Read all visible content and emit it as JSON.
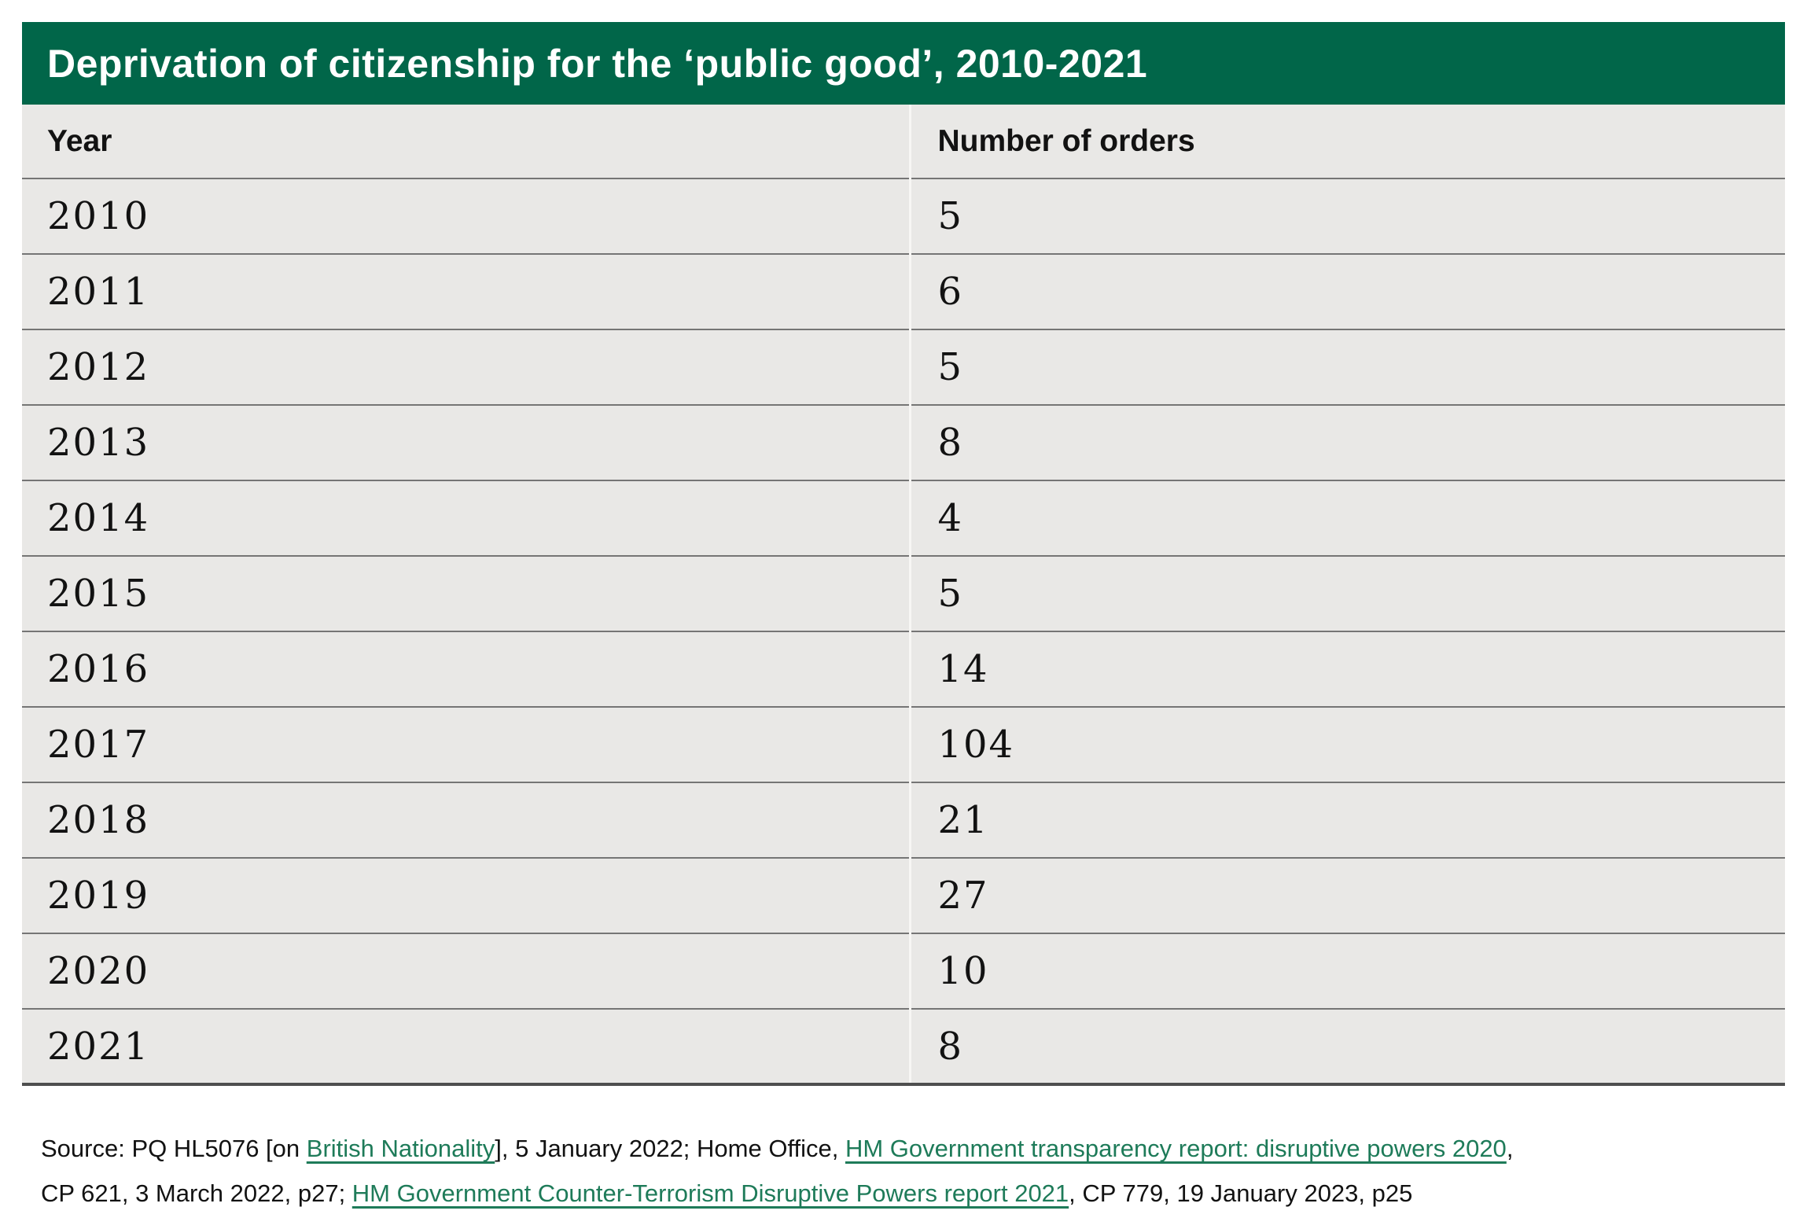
{
  "chart_data": {
    "type": "table",
    "title": "Deprivation of citizenship for the ‘public good’, 2010-2021",
    "columns": [
      "Year",
      "Number of orders"
    ],
    "categories": [
      "2010",
      "2011",
      "2012",
      "2013",
      "2014",
      "2015",
      "2016",
      "2017",
      "2018",
      "2019",
      "2020",
      "2021"
    ],
    "values": [
      5,
      6,
      5,
      8,
      4,
      5,
      14,
      104,
      21,
      27,
      10,
      8
    ]
  },
  "title": "Deprivation of citizenship for the ‘public good’, 2010-2021",
  "table": {
    "columns": [
      "Year",
      "Number of orders"
    ],
    "rows": [
      [
        "2010",
        "5"
      ],
      [
        "2011",
        "6"
      ],
      [
        "2012",
        "5"
      ],
      [
        "2013",
        "8"
      ],
      [
        "2014",
        "4"
      ],
      [
        "2015",
        "5"
      ],
      [
        "2016",
        "14"
      ],
      [
        "2017",
        "104"
      ],
      [
        "2018",
        "21"
      ],
      [
        "2019",
        "27"
      ],
      [
        "2020",
        "10"
      ],
      [
        "2021",
        "8"
      ]
    ]
  },
  "source": {
    "lines": [
      [
        {
          "text": "Source: PQ HL5076 [on ",
          "link": false
        },
        {
          "text": "British Nationality",
          "link": true
        },
        {
          "text": "], 5 January 2022; Home Office, ",
          "link": false
        },
        {
          "text": "HM Government transparency report: disruptive powers 2020",
          "link": true
        },
        {
          "text": ",",
          "link": false
        }
      ],
      [
        {
          "text": "CP 621, 3 March 2022, p27; ",
          "link": false
        },
        {
          "text": "HM Government Counter-Terrorism Disruptive Powers report 2021",
          "link": true
        },
        {
          "text": ", CP 779, 19 January 2023, p25",
          "link": false
        }
      ]
    ]
  },
  "colors": {
    "accent": "#016649",
    "title-text": "#ffffff",
    "row-bg": "#e9e8e6",
    "text": "#121212",
    "divider": "#757575",
    "bottom-border": "#4e4e4e",
    "col-divider": "#f7f6f4",
    "link": "#1e7b59"
  }
}
